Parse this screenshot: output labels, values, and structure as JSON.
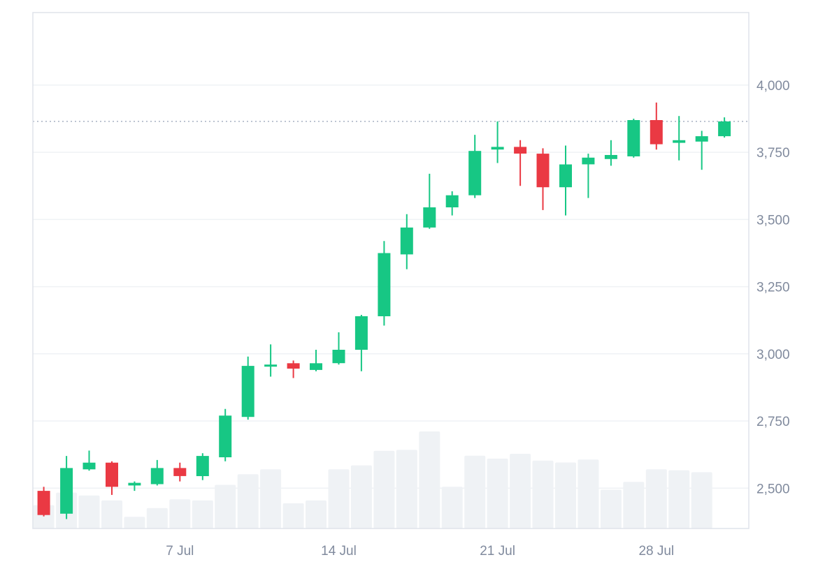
{
  "chart_data": {
    "type": "candlestick",
    "price_axis": {
      "position": "right",
      "ticks": [
        2500,
        2750,
        3000,
        3250,
        3500,
        3750,
        4000
      ],
      "tick_labels": [
        "2,500",
        "2,750",
        "3,000",
        "3,250",
        "3,500",
        "3,750",
        "4,000"
      ],
      "range": [
        2350,
        4270
      ]
    },
    "time_axis": {
      "tick_labels": [
        "7 Jul",
        "14 Jul",
        "21 Jul",
        "28 Jul"
      ],
      "tick_days": [
        7,
        14,
        21,
        28
      ]
    },
    "last_price_line": {
      "value": 3865,
      "style": "dotted"
    },
    "grid": true,
    "colors": {
      "up": "#17c784",
      "down": "#ea3943",
      "volume": "#eff2f5",
      "grid": "#eff2f5",
      "axis_text": "#808a9d",
      "frame": "#dfe3ea",
      "last_price_line": "#a6b0c3"
    },
    "candles": [
      {
        "day": 1,
        "open": 2490,
        "high": 2505,
        "low": 2395,
        "close": 2400
      },
      {
        "day": 2,
        "open": 2405,
        "high": 2620,
        "low": 2385,
        "close": 2575
      },
      {
        "day": 3,
        "open": 2570,
        "high": 2640,
        "low": 2565,
        "close": 2595
      },
      {
        "day": 4,
        "open": 2595,
        "high": 2600,
        "low": 2475,
        "close": 2505
      },
      {
        "day": 5,
        "open": 2510,
        "high": 2525,
        "low": 2490,
        "close": 2520
      },
      {
        "day": 6,
        "open": 2515,
        "high": 2605,
        "low": 2510,
        "close": 2575
      },
      {
        "day": 7,
        "open": 2575,
        "high": 2595,
        "low": 2525,
        "close": 2545
      },
      {
        "day": 8,
        "open": 2545,
        "high": 2630,
        "low": 2530,
        "close": 2620
      },
      {
        "day": 9,
        "open": 2615,
        "high": 2795,
        "low": 2600,
        "close": 2770
      },
      {
        "day": 10,
        "open": 2765,
        "high": 2990,
        "low": 2755,
        "close": 2955
      },
      {
        "day": 11,
        "open": 2955,
        "high": 3035,
        "low": 2915,
        "close": 2960
      },
      {
        "day": 12,
        "open": 2965,
        "high": 2975,
        "low": 2910,
        "close": 2945
      },
      {
        "day": 13,
        "open": 2940,
        "high": 3015,
        "low": 2935,
        "close": 2965
      },
      {
        "day": 14,
        "open": 2965,
        "high": 3080,
        "low": 2960,
        "close": 3015
      },
      {
        "day": 15,
        "open": 3015,
        "high": 3145,
        "low": 2935,
        "close": 3140
      },
      {
        "day": 16,
        "open": 3140,
        "high": 3420,
        "low": 3105,
        "close": 3375
      },
      {
        "day": 17,
        "open": 3370,
        "high": 3520,
        "low": 3315,
        "close": 3470
      },
      {
        "day": 18,
        "open": 3470,
        "high": 3670,
        "low": 3465,
        "close": 3545
      },
      {
        "day": 19,
        "open": 3545,
        "high": 3605,
        "low": 3515,
        "close": 3590
      },
      {
        "day": 20,
        "open": 3590,
        "high": 3815,
        "low": 3580,
        "close": 3755
      },
      {
        "day": 21,
        "open": 3760,
        "high": 3865,
        "low": 3710,
        "close": 3770
      },
      {
        "day": 22,
        "open": 3770,
        "high": 3795,
        "low": 3625,
        "close": 3745
      },
      {
        "day": 23,
        "open": 3745,
        "high": 3765,
        "low": 3535,
        "close": 3620
      },
      {
        "day": 24,
        "open": 3620,
        "high": 3775,
        "low": 3515,
        "close": 3705
      },
      {
        "day": 25,
        "open": 3705,
        "high": 3745,
        "low": 3580,
        "close": 3730
      },
      {
        "day": 26,
        "open": 3725,
        "high": 3795,
        "low": 3700,
        "close": 3740
      },
      {
        "day": 27,
        "open": 3735,
        "high": 3875,
        "low": 3730,
        "close": 3870
      },
      {
        "day": 28,
        "open": 3870,
        "high": 3935,
        "low": 3760,
        "close": 3780
      },
      {
        "day": 29,
        "open": 3785,
        "high": 3885,
        "low": 3720,
        "close": 3795
      },
      {
        "day": 30,
        "open": 3790,
        "high": 3830,
        "low": 3685,
        "close": 3810
      },
      {
        "day": 31,
        "open": 3810,
        "high": 3880,
        "low": 3805,
        "close": 3865
      }
    ],
    "volume": {
      "scale_max": 100,
      "days": [
        1,
        2,
        3,
        4,
        5,
        6,
        7,
        8,
        9,
        10,
        11,
        12,
        13,
        14,
        15,
        16,
        17,
        18,
        19,
        20,
        21,
        22,
        23,
        24,
        25,
        26,
        27,
        28,
        29,
        30
      ],
      "values": [
        24,
        37,
        34,
        29,
        12,
        21,
        30,
        29,
        45,
        56,
        61,
        26,
        29,
        61,
        65,
        80,
        81,
        100,
        43,
        75,
        72,
        77,
        70,
        68,
        71,
        40,
        48,
        61,
        60,
        58
      ]
    }
  }
}
